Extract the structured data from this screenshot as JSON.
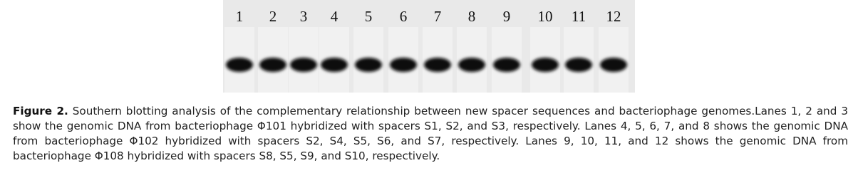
{
  "figure": {
    "lanes": [
      "1",
      "2",
      "3",
      "4",
      "5",
      "6",
      "7",
      "8",
      "9",
      "10",
      "11",
      "12"
    ],
    "caption": {
      "label": "Figure 2.",
      "text": "Southern blotting analysis of the complementary relationship between new spacer sequences and bacteriophage genomes.Lanes 1, 2 and 3 show the genomic DNA from bacteriophage Φ101 hybridized with spacers S1, S2, and S3, respectively. Lanes 4, 5, 6, 7, and 8 shows the genomic DNA from bacteriophage Φ102 hybridized with spacers S2, S4, S5, S6, and S7, respectively. Lanes 9, 10, 11, and 12 shows the genomic DNA from bacteriophage Φ108 hybridized with spacers S8, S5, S9, and S10, respectively."
    }
  }
}
